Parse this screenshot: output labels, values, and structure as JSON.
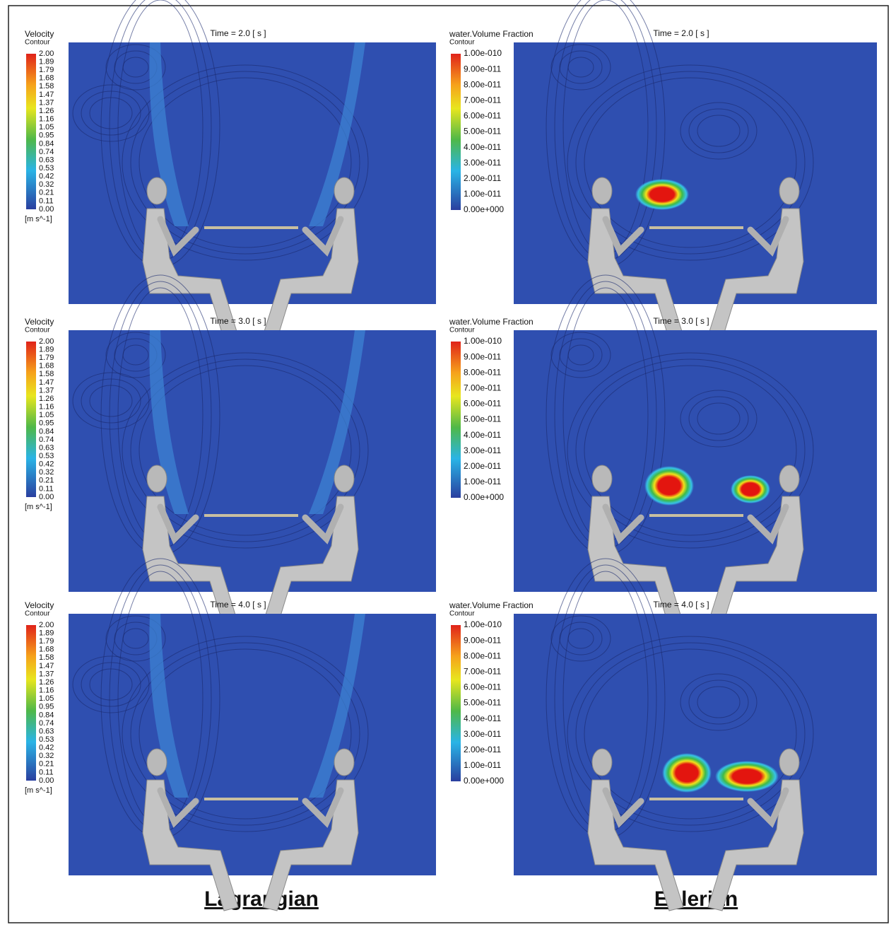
{
  "panels": [
    {
      "title": "Velocity",
      "subtitle": "Contour",
      "time": "Time = 2.0 [ s ]",
      "levels": [
        "2.00",
        "1.89",
        "1.79",
        "1.68",
        "1.58",
        "1.47",
        "1.37",
        "1.26",
        "1.16",
        "1.05",
        "0.95",
        "0.84",
        "0.74",
        "0.63",
        "0.53",
        "0.42",
        "0.32",
        "0.21",
        "0.11",
        "0.00"
      ],
      "unit": "[m s^-1]"
    },
    {
      "title": "water.Volume Fraction",
      "subtitle": "Contour",
      "time": "Time = 2.0 [ s ]",
      "levels": [
        "1.00e-010",
        "9.00e-011",
        "8.00e-011",
        "7.00e-011",
        "6.00e-011",
        "5.00e-011",
        "4.00e-011",
        "3.00e-011",
        "2.00e-011",
        "1.00e-011",
        "0.00e+000"
      ]
    },
    {
      "title": "Velocity",
      "subtitle": "Contour",
      "time": "Time = 3.0 [ s ]",
      "levels": [
        "2.00",
        "1.89",
        "1.79",
        "1.68",
        "1.58",
        "1.47",
        "1.37",
        "1.26",
        "1.16",
        "1.05",
        "0.95",
        "0.84",
        "0.74",
        "0.63",
        "0.53",
        "0.42",
        "0.32",
        "0.21",
        "0.11",
        "0.00"
      ],
      "unit": "[m s^-1]"
    },
    {
      "title": "water.Volume Fraction",
      "subtitle": "Contour",
      "time": "Time = 3.0 [ s ]",
      "levels": [
        "1.00e-010",
        "9.00e-011",
        "8.00e-011",
        "7.00e-011",
        "6.00e-011",
        "5.00e-011",
        "4.00e-011",
        "3.00e-011",
        "2.00e-011",
        "1.00e-011",
        "0.00e+000"
      ]
    },
    {
      "title": "Velocity",
      "subtitle": "Contour",
      "time": "Time = 4.0 [ s ]",
      "levels": [
        "2.00",
        "1.89",
        "1.79",
        "1.68",
        "1.58",
        "1.47",
        "1.37",
        "1.26",
        "1.16",
        "1.05",
        "0.95",
        "0.84",
        "0.74",
        "0.63",
        "0.53",
        "0.42",
        "0.32",
        "0.21",
        "0.11",
        "0.00"
      ],
      "unit": "[m s^-1]"
    },
    {
      "title": "water.Volume Fraction",
      "subtitle": "Contour",
      "time": "Time = 4.0 [ s ]",
      "levels": [
        "1.00e-010",
        "9.00e-011",
        "8.00e-011",
        "7.00e-011",
        "6.00e-011",
        "5.00e-011",
        "4.00e-011",
        "3.00e-011",
        "2.00e-011",
        "1.00e-011",
        "0.00e+000"
      ]
    }
  ],
  "columns": [
    "Lagrangian",
    "Eulerian"
  ]
}
